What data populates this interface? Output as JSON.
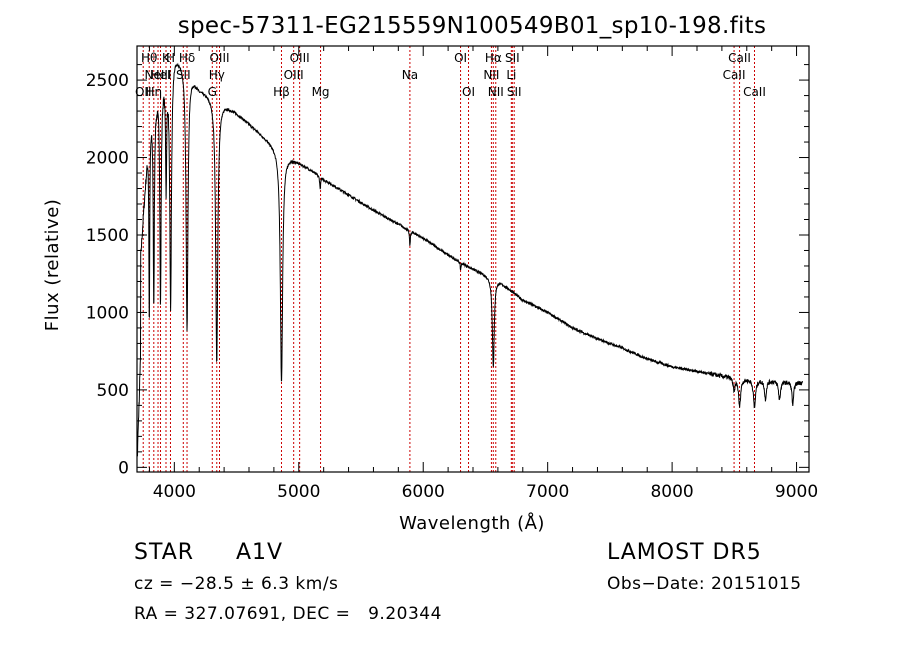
{
  "chart_data": {
    "type": "line",
    "title": "spec-57311-EG215559N100549B01_sp10-198.fits",
    "xlabel": "Wavelength (Å)",
    "ylabel": "Flux (relative)",
    "xlim": [
      3700,
      9100
    ],
    "ylim": [
      -30,
      2720
    ],
    "xticks": [
      4000,
      5000,
      6000,
      7000,
      8000,
      9000
    ],
    "yticks": [
      0,
      500,
      1000,
      1500,
      2000,
      2500
    ],
    "grid": false,
    "line_color": "#000000",
    "marker_color": "#cc0000",
    "continuum": {
      "x": [
        3700,
        3800,
        3900,
        4000,
        4100,
        4200,
        4300,
        4400,
        4500,
        4600,
        4700,
        4800,
        4900,
        5000,
        5100,
        5200,
        5400,
        5600,
        5800,
        6000,
        6200,
        6400,
        6600,
        6800,
        7000,
        7200,
        7400,
        7600,
        7800,
        8000,
        8200,
        8400,
        8600,
        8800,
        9000,
        9050
      ],
      "y": [
        1000,
        2250,
        2500,
        2680,
        2600,
        2450,
        2400,
        2350,
        2290,
        2220,
        2150,
        2080,
        2020,
        1970,
        1920,
        1860,
        1760,
        1660,
        1570,
        1480,
        1370,
        1280,
        1210,
        1080,
        1000,
        900,
        830,
        770,
        700,
        650,
        620,
        590,
        570,
        560,
        550,
        550
      ]
    },
    "absorption_features": [
      {
        "center": 3799,
        "depth": 1300,
        "width": 4
      },
      {
        "center": 3835,
        "depth": 1300,
        "width": 5
      },
      {
        "center": 3889,
        "depth": 1400,
        "width": 6
      },
      {
        "center": 3934,
        "depth": 700,
        "width": 5
      },
      {
        "center": 3970,
        "depth": 1600,
        "width": 8
      },
      {
        "center": 4102,
        "depth": 1700,
        "width": 9
      },
      {
        "center": 4341,
        "depth": 1700,
        "width": 10
      },
      {
        "center": 4861,
        "depth": 1500,
        "width": 11
      },
      {
        "center": 5172,
        "depth": 80,
        "width": 4
      },
      {
        "center": 5893,
        "depth": 100,
        "width": 4
      },
      {
        "center": 6300,
        "depth": 50,
        "width": 4
      },
      {
        "center": 6563,
        "depth": 580,
        "width": 9
      },
      {
        "center": 8498,
        "depth": 90,
        "width": 8
      },
      {
        "center": 8542,
        "depth": 180,
        "width": 10
      },
      {
        "center": 8662,
        "depth": 180,
        "width": 10
      },
      {
        "center": 8750,
        "depth": 120,
        "width": 9
      },
      {
        "center": 8863,
        "depth": 120,
        "width": 9
      },
      {
        "center": 8970,
        "depth": 150,
        "width": 8
      }
    ],
    "line_markers": [
      {
        "x": 3750,
        "label": "OII",
        "row": 3
      },
      {
        "x": 3798,
        "label": "Hθ",
        "row": 1
      },
      {
        "x": 3835,
        "label": "Hη",
        "row": 3
      },
      {
        "x": 3869,
        "label": "NeIII",
        "row": 2
      },
      {
        "x": 3889,
        "label": "HeI",
        "row": 2
      },
      {
        "x": 3933,
        "label": "K",
        "row": 1
      },
      {
        "x": 3969,
        "label": "H",
        "row": 1
      },
      {
        "x": 4072,
        "label": "SII",
        "row": 2
      },
      {
        "x": 4102,
        "label": "Hδ",
        "row": 1
      },
      {
        "x": 4305,
        "label": "G",
        "row": 3
      },
      {
        "x": 4341,
        "label": "Hγ",
        "row": 2
      },
      {
        "x": 4363,
        "label": "OIII",
        "row": 1
      },
      {
        "x": 4861,
        "label": "Hβ",
        "row": 3
      },
      {
        "x": 4959,
        "label": "OIII",
        "row": 2
      },
      {
        "x": 5007,
        "label": "OIII",
        "row": 1
      },
      {
        "x": 5175,
        "label": "Mg",
        "row": 3
      },
      {
        "x": 5893,
        "label": "Na",
        "row": 2
      },
      {
        "x": 6300,
        "label": "OI",
        "row": 1
      },
      {
        "x": 6364,
        "label": "OI",
        "row": 3
      },
      {
        "x": 6548,
        "label": "NII",
        "row": 2
      },
      {
        "x": 6563,
        "label": "Hα",
        "row": 1
      },
      {
        "x": 6583,
        "label": "NII",
        "row": 3
      },
      {
        "x": 6708,
        "label": "Li",
        "row": 2
      },
      {
        "x": 6716,
        "label": "SII",
        "row": 1
      },
      {
        "x": 6731,
        "label": "SII",
        "row": 3
      },
      {
        "x": 8498,
        "label": "CaII",
        "row": 2
      },
      {
        "x": 8542,
        "label": "CaII",
        "row": 1
      },
      {
        "x": 8662,
        "label": "CaII",
        "row": 3
      }
    ]
  },
  "info": {
    "class_label": "STAR",
    "subclass": "A1V",
    "survey": "LAMOST DR5",
    "cz": "cz = −28.5 ± 6.3 km/s",
    "obs_date": "Obs−Date: 20151015",
    "coords": "RA = 327.07691, DEC =   9.20344"
  }
}
